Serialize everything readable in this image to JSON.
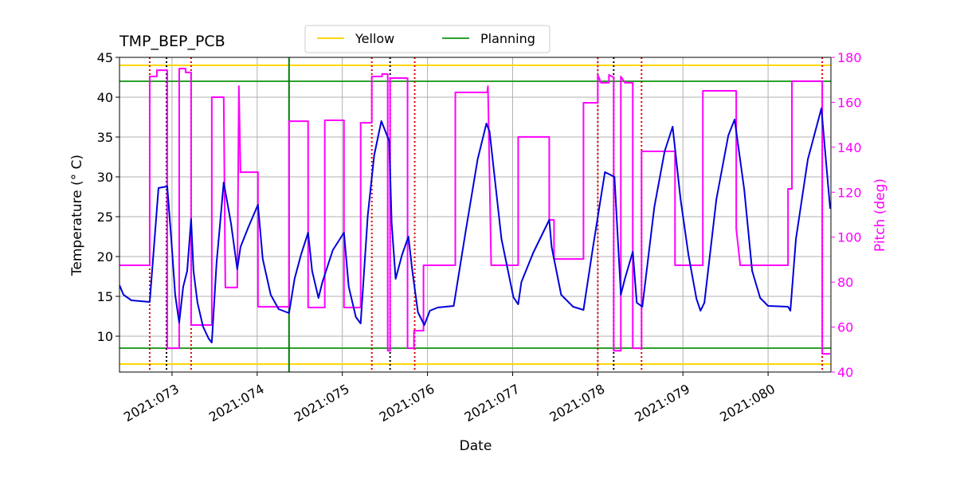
{
  "chart_data": {
    "type": "line",
    "title": "TMP_BEP_PCB",
    "x_label": "Date",
    "y_label": "Temperature (° C)",
    "y2_label": "Pitch (deg)",
    "y2_color": "#ff00ff",
    "grid": true,
    "xlim": [
      72.383,
      80.738
    ],
    "xticks": [
      {
        "value": 73,
        "label": "2021:073"
      },
      {
        "value": 74,
        "label": "2021:074"
      },
      {
        "value": 75,
        "label": "2021:075"
      },
      {
        "value": 76,
        "label": "2021:076"
      },
      {
        "value": 77,
        "label": "2021:077"
      },
      {
        "value": 78,
        "label": "2021:078"
      },
      {
        "value": 79,
        "label": "2021:079"
      },
      {
        "value": 80,
        "label": "2021:080"
      }
    ],
    "ylim": [
      5.5,
      45
    ],
    "yticks": [
      10,
      15,
      20,
      25,
      30,
      35,
      40,
      45
    ],
    "y2lim": [
      40,
      180
    ],
    "y2ticks": [
      40,
      60,
      80,
      100,
      120,
      140,
      160,
      180
    ],
    "limits": [
      {
        "name": "Yellow",
        "color": "#ffd700",
        "values": [
          6.5,
          44
        ]
      },
      {
        "name": "Planning",
        "color": "#2ca02c",
        "values": [
          8.5,
          42
        ]
      }
    ],
    "vlines": [
      {
        "color": "#008000",
        "style": "solid",
        "x": [
          74.374
        ]
      },
      {
        "color": "#dd0000",
        "style": "dotted",
        "x": [
          72.738,
          73.224,
          75.346,
          75.85,
          78.0,
          78.514,
          80.636
        ]
      },
      {
        "color": "#000000",
        "style": "dotted",
        "x": [
          72.935,
          75.561,
          78.187
        ]
      }
    ],
    "series": [
      {
        "color": "#ff00ff",
        "axis": "y2",
        "x": [
          72.383,
          72.738,
          72.738,
          72.822,
          72.822,
          72.944,
          72.944,
          73.084,
          73.084,
          73.159,
          73.159,
          73.224,
          73.224,
          73.467,
          73.467,
          73.607,
          73.626,
          73.766,
          73.785,
          73.804,
          74.009,
          74.009,
          74.374,
          74.374,
          74.598,
          74.598,
          74.794,
          74.794,
          75.019,
          75.019,
          75.215,
          75.215,
          75.346,
          75.346,
          75.467,
          75.467,
          75.533,
          75.533,
          75.561,
          75.561,
          75.766,
          75.766,
          75.841,
          75.841,
          75.953,
          75.953,
          76.327,
          76.327,
          76.701,
          76.71,
          76.748,
          77.065,
          77.065,
          77.43,
          77.43,
          77.486,
          77.486,
          77.832,
          77.832,
          78.0,
          78.0,
          78.037,
          78.131,
          78.131,
          78.187,
          78.187,
          78.271,
          78.271,
          78.318,
          78.411,
          78.411,
          78.514,
          78.514,
          78.907,
          78.907,
          79.234,
          79.234,
          79.626,
          79.626,
          79.673,
          80.234,
          80.234,
          80.28,
          80.28,
          80.636,
          80.636,
          80.729
        ],
        "values": [
          87.5,
          87.5,
          171.5,
          171.5,
          174.3,
          174.3,
          50.6,
          50.6,
          175.0,
          175.0,
          173.3,
          173.3,
          60.9,
          60.9,
          162.3,
          162.3,
          77.6,
          77.6,
          167.2,
          128.9,
          128.9,
          69.0,
          69.0,
          151.6,
          151.6,
          68.7,
          68.7,
          152.0,
          152.0,
          68.7,
          68.7,
          150.9,
          150.9,
          171.5,
          171.5,
          172.6,
          172.6,
          49.5,
          49.5,
          170.8,
          170.8,
          50.6,
          50.6,
          58.4,
          58.4,
          87.5,
          87.5,
          164.4,
          164.4,
          167.2,
          87.5,
          87.5,
          144.6,
          144.6,
          107.7,
          107.7,
          90.3,
          90.3,
          159.8,
          159.8,
          172.2,
          168.7,
          168.7,
          172.2,
          171.1,
          49.5,
          49.5,
          171.5,
          168.7,
          168.7,
          50.6,
          50.6,
          138.2,
          138.2,
          87.5,
          87.5,
          165.1,
          165.1,
          103.8,
          87.5,
          87.5,
          121.5,
          121.5,
          169.4,
          169.4,
          48.1,
          48.1
        ]
      },
      {
        "color": "#0000dd",
        "x": [
          72.383,
          72.43,
          72.523,
          72.738,
          72.841,
          72.944,
          72.991,
          73.037,
          73.084,
          73.131,
          73.178,
          73.224,
          73.252,
          73.299,
          73.364,
          73.43,
          73.467,
          73.523,
          73.607,
          73.692,
          73.766,
          73.804,
          73.897,
          74.009,
          74.065,
          74.159,
          74.252,
          74.374,
          74.439,
          74.514,
          74.598,
          74.645,
          74.72,
          74.766,
          74.888,
          75.019,
          75.075,
          75.159,
          75.215,
          75.299,
          75.374,
          75.458,
          75.551,
          75.579,
          75.626,
          75.701,
          75.776,
          75.822,
          75.888,
          75.963,
          76.028,
          76.121,
          76.308,
          76.449,
          76.589,
          76.692,
          76.729,
          76.869,
          77.009,
          77.065,
          77.103,
          77.243,
          77.43,
          77.458,
          77.57,
          77.71,
          77.832,
          77.944,
          78.084,
          78.196,
          78.271,
          78.318,
          78.411,
          78.458,
          78.523,
          78.664,
          78.785,
          78.879,
          78.972,
          79.065,
          79.159,
          79.206,
          79.252,
          79.393,
          79.533,
          79.607,
          79.72,
          79.813,
          79.907,
          80.0,
          80.234,
          80.262,
          80.327,
          80.467,
          80.626,
          80.729
        ],
        "values": [
          16.4,
          15.2,
          14.5,
          14.3,
          28.6,
          28.8,
          22.2,
          15.2,
          11.7,
          16.2,
          18.2,
          24.7,
          18.2,
          14.2,
          11.2,
          9.7,
          9.2,
          19.2,
          29.3,
          24.2,
          18.4,
          21.2,
          23.7,
          26.5,
          19.7,
          15.2,
          13.4,
          12.9,
          17.2,
          20.2,
          23.0,
          18.2,
          14.8,
          16.8,
          20.8,
          23.0,
          16.2,
          12.4,
          11.6,
          25.2,
          32.7,
          37.0,
          34.5,
          24.2,
          17.2,
          20.2,
          22.5,
          18.2,
          13.0,
          11.4,
          13.2,
          13.6,
          13.8,
          23.2,
          32.2,
          36.7,
          35.7,
          22.2,
          14.9,
          14.0,
          16.8,
          20.5,
          24.6,
          21.2,
          15.2,
          13.7,
          13.3,
          21.2,
          30.6,
          30.0,
          15.2,
          17.2,
          20.6,
          14.2,
          13.7,
          26.2,
          33.2,
          36.3,
          27.2,
          20.2,
          14.7,
          13.2,
          14.2,
          27.2,
          35.2,
          37.2,
          28.4,
          18.2,
          14.8,
          13.8,
          13.7,
          13.2,
          22.2,
          32.2,
          38.6,
          26.0
        ]
      }
    ]
  }
}
